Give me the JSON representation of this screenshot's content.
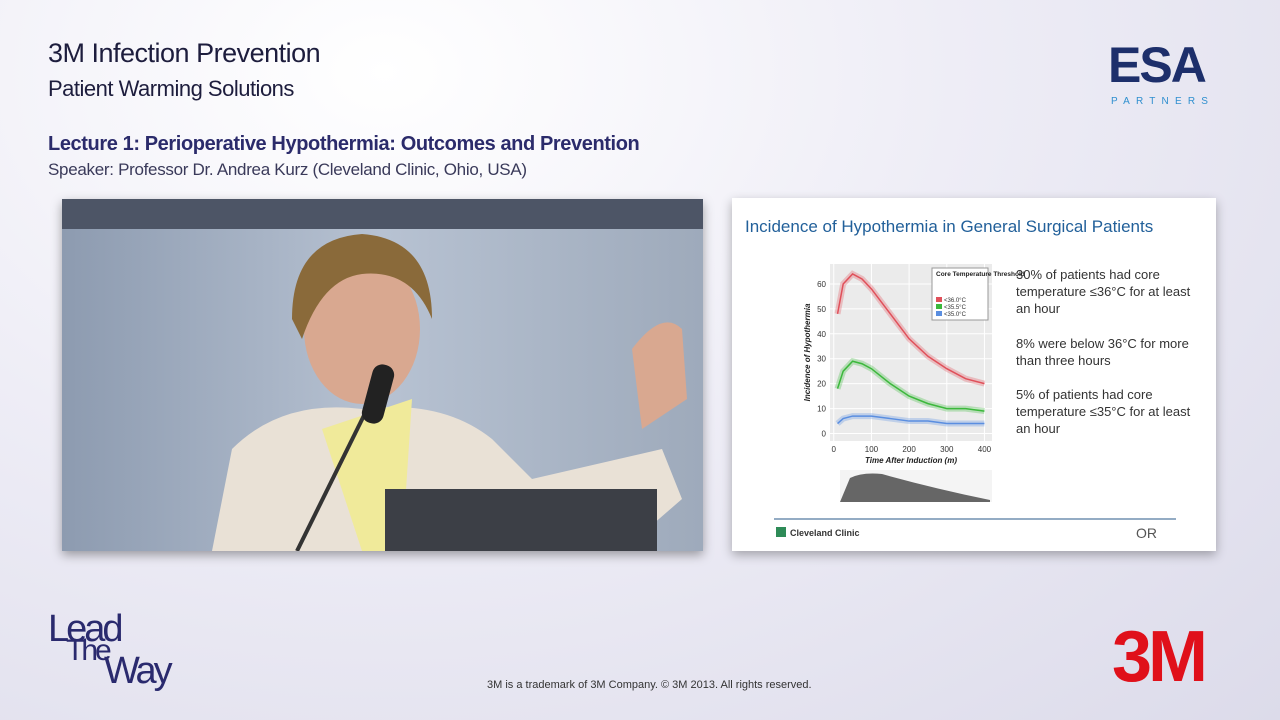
{
  "header": {
    "title": "3M Infection Prevention",
    "subtitle": "Patient Warming Solutions"
  },
  "logo": {
    "name": "ESA",
    "tagline": "PARTNERS"
  },
  "lecture": {
    "title": "Lecture 1: Perioperative Hypothermia: Outcomes and Prevention",
    "speaker": "Speaker: Professor Dr. Andrea Kurz (Cleveland Clinic, Ohio, USA)"
  },
  "slide": {
    "title": "Incidence of Hypothermia in General Surgical Patients",
    "bullets": [
      "30% of patients had core temperature ≤36°C for at least an hour",
      "8% were below 36°C for more than three hours",
      "5% of patients had core temperature ≤35°C for at least an hour"
    ],
    "chart": {
      "type": "line",
      "y_label": "Incidence of Hypothermia",
      "x_label": "Time After Induction (m)",
      "legend_title": "Core Temperature Threshold",
      "x": [
        10,
        25,
        50,
        75,
        100,
        150,
        200,
        250,
        300,
        350,
        400
      ],
      "series": [
        {
          "name": "<36.0°C",
          "color": "#e0505a",
          "values": [
            48,
            60,
            64,
            62,
            58,
            48,
            38,
            31,
            26,
            22,
            20
          ]
        },
        {
          "name": "<35.5°C",
          "color": "#3cb83c",
          "values": [
            18,
            25,
            29,
            28,
            26,
            20,
            15,
            12,
            10,
            10,
            9
          ]
        },
        {
          "name": "<35.0°C",
          "color": "#5a8ee0",
          "values": [
            4,
            6,
            7,
            7,
            7,
            6,
            5,
            5,
            4,
            4,
            4
          ]
        }
      ],
      "xlim": [
        -10,
        420
      ],
      "ylim": [
        -3,
        68
      ],
      "xticks": [
        0,
        100,
        200,
        300,
        400
      ],
      "yticks": [
        0,
        10,
        20,
        30,
        40,
        50,
        60
      ],
      "grid": true
    },
    "footer_left": "Cleveland Clinic",
    "footer_right": "OR"
  },
  "footer": {
    "lead": [
      "Lead",
      "The",
      "Way"
    ],
    "copyright": "3M is a trademark of 3M Company. © 3M 2013. All rights reserved.",
    "brand": "3M"
  }
}
